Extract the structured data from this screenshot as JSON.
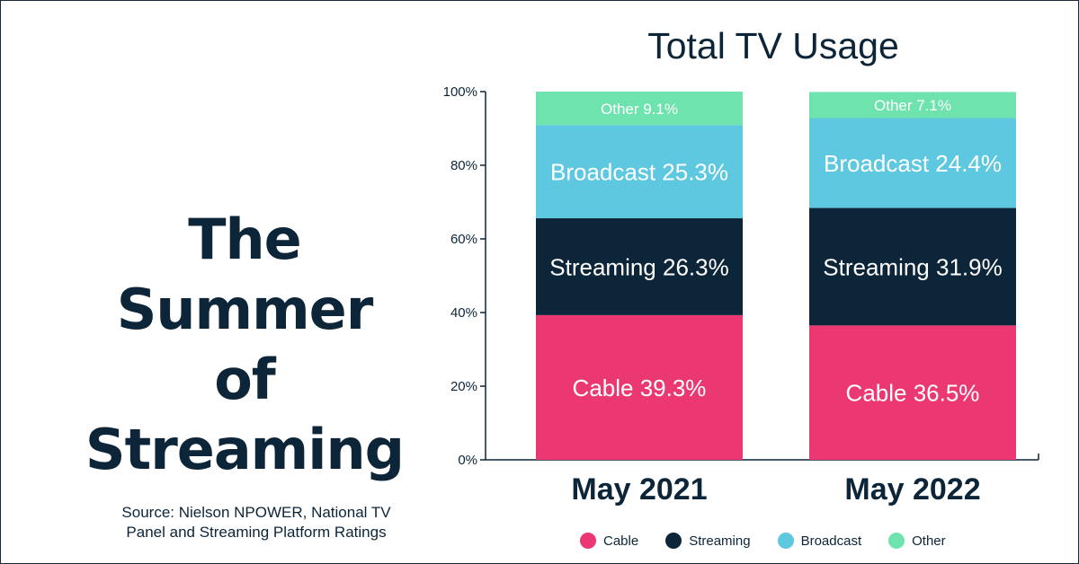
{
  "headline": {
    "line1": "The Summer",
    "line2": "of Streaming"
  },
  "source": {
    "line1": "Source: Nielson NPOWER, National TV",
    "line2": "Panel and Streaming Platform Ratings"
  },
  "chart_data": {
    "type": "bar",
    "stacked": true,
    "title": "Total TV Usage",
    "categories": [
      "May 2021",
      "May 2022"
    ],
    "series": [
      {
        "name": "Cable",
        "label": "Cable",
        "values": [
          39.3,
          36.5
        ],
        "color": "#eb3872",
        "text_color": "#ffffff"
      },
      {
        "name": "Streaming",
        "label": "Streaming",
        "values": [
          26.3,
          31.9
        ],
        "color": "#0c2538",
        "text_color": "#ffffff"
      },
      {
        "name": "Broadcast",
        "label": "Broadcast",
        "values": [
          25.3,
          24.4
        ],
        "color": "#5dc8e0",
        "text_color": "#ffffff"
      },
      {
        "name": "Other",
        "label": "Other",
        "values": [
          9.1,
          7.1
        ],
        "color": "#6ee3ae",
        "text_color": "#ffffff"
      }
    ],
    "ylim": [
      0,
      100
    ],
    "yticks": [
      "0%",
      "20%",
      "40%",
      "60%",
      "80%",
      "100%"
    ],
    "ytick_values": [
      0,
      20,
      40,
      60,
      80,
      100
    ],
    "grid": false,
    "legend_position": "bottom"
  }
}
